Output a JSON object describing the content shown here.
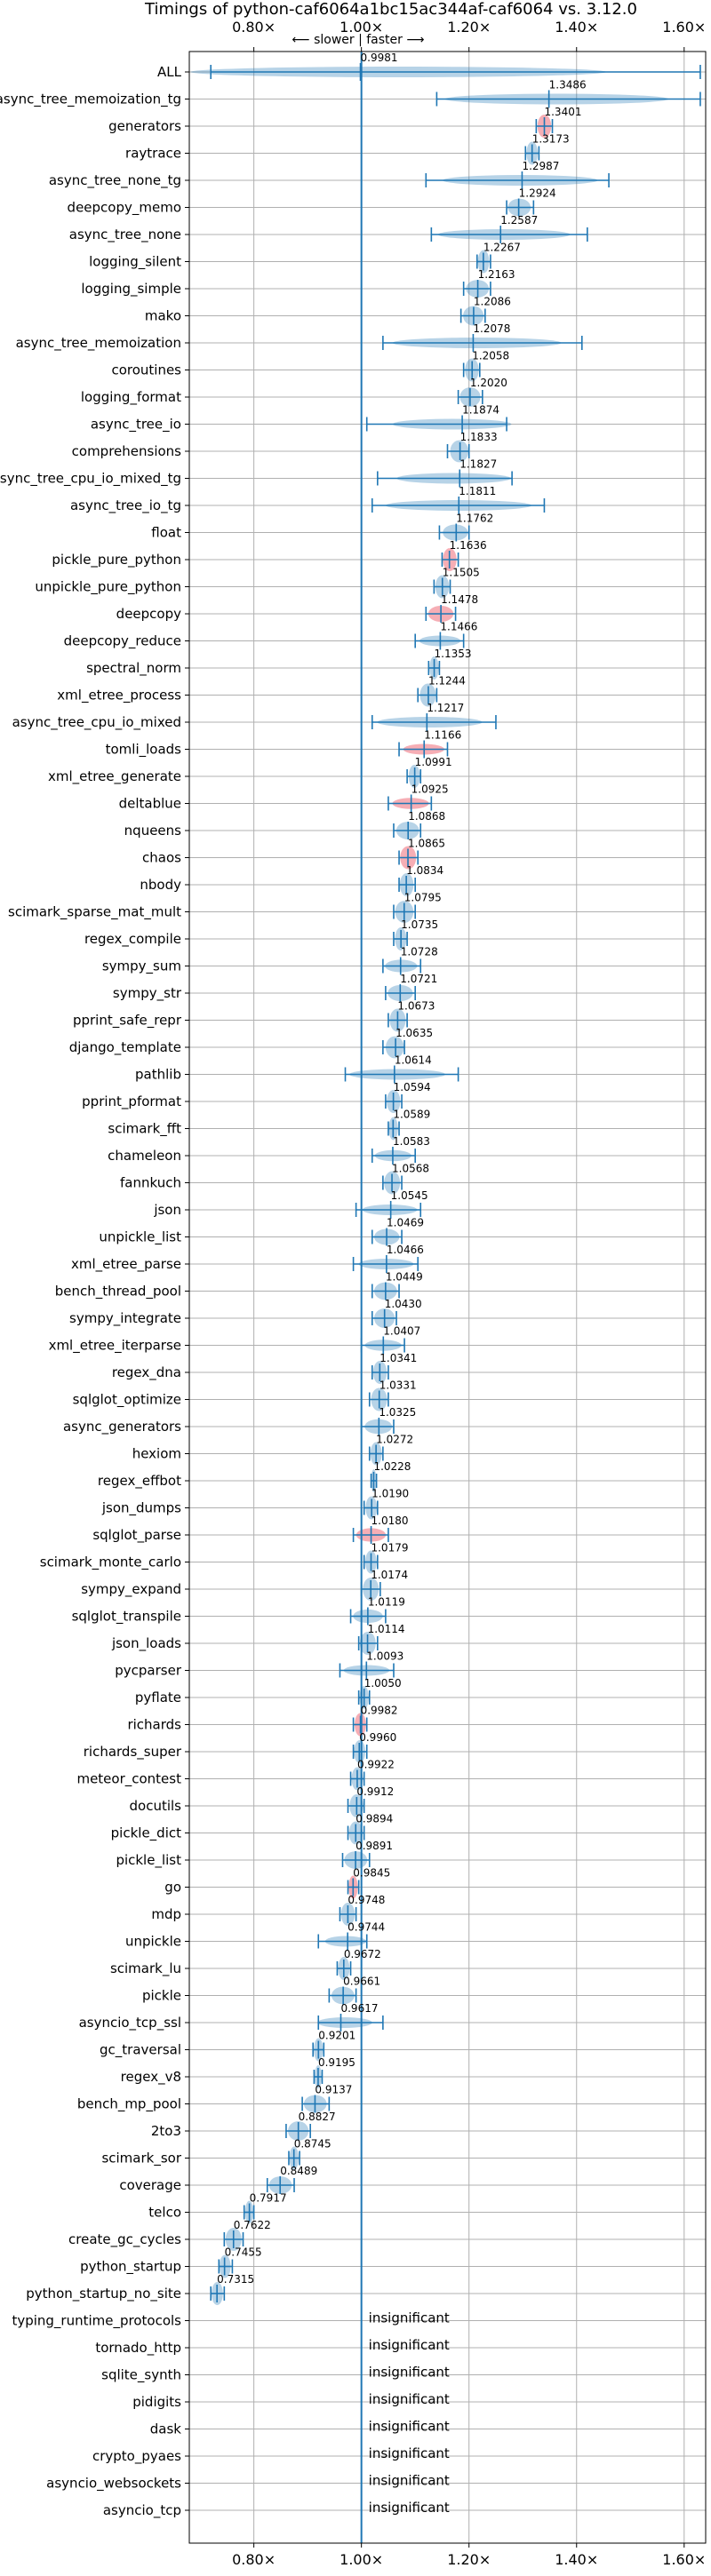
{
  "chart_data": {
    "type": "violin",
    "title": "Timings of python-caf6064a1bc15ac344af-caf6064 vs. 3.12.0",
    "xlabel": "",
    "ylabel": "",
    "xlim": [
      0.68,
      1.64
    ],
    "xticks": [
      0.8,
      1.0,
      1.2,
      1.4,
      1.6
    ],
    "xtick_labels": [
      "0.80×",
      "1.00×",
      "1.20×",
      "1.40×",
      "1.60×"
    ],
    "reference_line": 1.0,
    "direction_label": "⟵ slower | faster ⟶",
    "grid": true,
    "colors": {
      "normal": "#1f77b4",
      "highlight": "#f4a0a8",
      "line": "#1f77b4"
    },
    "benchmarks": [
      {
        "name": "ALL",
        "value": 0.9981,
        "label": "0.9981",
        "min": 0.72,
        "max": 1.63,
        "hl": false
      },
      {
        "name": "async_tree_memoization_tg",
        "value": 1.3486,
        "label": "1.3486",
        "min": 1.14,
        "max": 1.63,
        "hl": false
      },
      {
        "name": "generators",
        "value": 1.3401,
        "label": "1.3401",
        "min": 1.325,
        "max": 1.355,
        "hl": true
      },
      {
        "name": "raytrace",
        "value": 1.3173,
        "label": "1.3173",
        "min": 1.305,
        "max": 1.33,
        "hl": false
      },
      {
        "name": "async_tree_none_tg",
        "value": 1.2987,
        "label": "1.2987",
        "min": 1.12,
        "max": 1.46,
        "hl": false
      },
      {
        "name": "deepcopy_memo",
        "value": 1.2924,
        "label": "1.2924",
        "min": 1.27,
        "max": 1.32,
        "hl": false
      },
      {
        "name": "async_tree_none",
        "value": 1.2587,
        "label": "1.2587",
        "min": 1.13,
        "max": 1.42,
        "hl": false
      },
      {
        "name": "logging_silent",
        "value": 1.2267,
        "label": "1.2267",
        "min": 1.215,
        "max": 1.24,
        "hl": false
      },
      {
        "name": "logging_simple",
        "value": 1.2163,
        "label": "1.2163",
        "min": 1.19,
        "max": 1.24,
        "hl": false
      },
      {
        "name": "mako",
        "value": 1.2086,
        "label": "1.2086",
        "min": 1.185,
        "max": 1.23,
        "hl": false
      },
      {
        "name": "async_tree_memoization",
        "value": 1.2078,
        "label": "1.2078",
        "min": 1.04,
        "max": 1.41,
        "hl": false
      },
      {
        "name": "coroutines",
        "value": 1.2058,
        "label": "1.2058",
        "min": 1.19,
        "max": 1.22,
        "hl": false
      },
      {
        "name": "logging_format",
        "value": 1.202,
        "label": "1.2020",
        "min": 1.18,
        "max": 1.225,
        "hl": false
      },
      {
        "name": "async_tree_io",
        "value": 1.1874,
        "label": "1.1874",
        "min": 1.01,
        "max": 1.27,
        "hl": false
      },
      {
        "name": "comprehensions",
        "value": 1.1833,
        "label": "1.1833",
        "min": 1.16,
        "max": 1.2,
        "hl": false
      },
      {
        "name": "async_tree_cpu_io_mixed_tg",
        "value": 1.1827,
        "label": "1.1827",
        "min": 1.03,
        "max": 1.28,
        "hl": false
      },
      {
        "name": "async_tree_io_tg",
        "value": 1.1811,
        "label": "1.1811",
        "min": 1.02,
        "max": 1.34,
        "hl": false
      },
      {
        "name": "float",
        "value": 1.1762,
        "label": "1.1762",
        "min": 1.145,
        "max": 1.2,
        "hl": false
      },
      {
        "name": "pickle_pure_python",
        "value": 1.1636,
        "label": "1.1636",
        "min": 1.15,
        "max": 1.18,
        "hl": true
      },
      {
        "name": "unpickle_pure_python",
        "value": 1.1505,
        "label": "1.1505",
        "min": 1.135,
        "max": 1.165,
        "hl": false
      },
      {
        "name": "deepcopy",
        "value": 1.1478,
        "label": "1.1478",
        "min": 1.12,
        "max": 1.175,
        "hl": true
      },
      {
        "name": "deepcopy_reduce",
        "value": 1.1466,
        "label": "1.1466",
        "min": 1.1,
        "max": 1.19,
        "hl": false
      },
      {
        "name": "spectral_norm",
        "value": 1.1353,
        "label": "1.1353",
        "min": 1.125,
        "max": 1.145,
        "hl": false
      },
      {
        "name": "xml_etree_process",
        "value": 1.1244,
        "label": "1.1244",
        "min": 1.105,
        "max": 1.14,
        "hl": false
      },
      {
        "name": "async_tree_cpu_io_mixed",
        "value": 1.1217,
        "label": "1.1217",
        "min": 1.02,
        "max": 1.25,
        "hl": false
      },
      {
        "name": "tomli_loads",
        "value": 1.1166,
        "label": "1.1166",
        "min": 1.07,
        "max": 1.16,
        "hl": true
      },
      {
        "name": "xml_etree_generate",
        "value": 1.0991,
        "label": "1.0991",
        "min": 1.085,
        "max": 1.11,
        "hl": false
      },
      {
        "name": "deltablue",
        "value": 1.0925,
        "label": "1.0925",
        "min": 1.05,
        "max": 1.13,
        "hl": true
      },
      {
        "name": "nqueens",
        "value": 1.0868,
        "label": "1.0868",
        "min": 1.06,
        "max": 1.11,
        "hl": false
      },
      {
        "name": "chaos",
        "value": 1.0865,
        "label": "1.0865",
        "min": 1.07,
        "max": 1.105,
        "hl": true
      },
      {
        "name": "nbody",
        "value": 1.0834,
        "label": "1.0834",
        "min": 1.07,
        "max": 1.1,
        "hl": false
      },
      {
        "name": "scimark_sparse_mat_mult",
        "value": 1.0795,
        "label": "1.0795",
        "min": 1.06,
        "max": 1.1,
        "hl": false
      },
      {
        "name": "regex_compile",
        "value": 1.0735,
        "label": "1.0735",
        "min": 1.06,
        "max": 1.085,
        "hl": false
      },
      {
        "name": "sympy_sum",
        "value": 1.0728,
        "label": "1.0728",
        "min": 1.04,
        "max": 1.11,
        "hl": false
      },
      {
        "name": "sympy_str",
        "value": 1.0721,
        "label": "1.0721",
        "min": 1.045,
        "max": 1.1,
        "hl": false
      },
      {
        "name": "pprint_safe_repr",
        "value": 1.0673,
        "label": "1.0673",
        "min": 1.05,
        "max": 1.085,
        "hl": false
      },
      {
        "name": "django_template",
        "value": 1.0635,
        "label": "1.0635",
        "min": 1.04,
        "max": 1.08,
        "hl": false
      },
      {
        "name": "pathlib",
        "value": 1.0614,
        "label": "1.0614",
        "min": 0.97,
        "max": 1.18,
        "hl": false
      },
      {
        "name": "pprint_pformat",
        "value": 1.0594,
        "label": "1.0594",
        "min": 1.045,
        "max": 1.075,
        "hl": false
      },
      {
        "name": "scimark_fft",
        "value": 1.0589,
        "label": "1.0589",
        "min": 1.05,
        "max": 1.07,
        "hl": false
      },
      {
        "name": "chameleon",
        "value": 1.0583,
        "label": "1.0583",
        "min": 1.02,
        "max": 1.1,
        "hl": false
      },
      {
        "name": "fannkuch",
        "value": 1.0568,
        "label": "1.0568",
        "min": 1.04,
        "max": 1.075,
        "hl": false
      },
      {
        "name": "json",
        "value": 1.0545,
        "label": "1.0545",
        "min": 0.99,
        "max": 1.11,
        "hl": false
      },
      {
        "name": "unpickle_list",
        "value": 1.0469,
        "label": "1.0469",
        "min": 1.02,
        "max": 1.075,
        "hl": false
      },
      {
        "name": "xml_etree_parse",
        "value": 1.0466,
        "label": "1.0466",
        "min": 0.985,
        "max": 1.105,
        "hl": false
      },
      {
        "name": "bench_thread_pool",
        "value": 1.0449,
        "label": "1.0449",
        "min": 1.02,
        "max": 1.07,
        "hl": false
      },
      {
        "name": "sympy_integrate",
        "value": 1.043,
        "label": "1.0430",
        "min": 1.02,
        "max": 1.065,
        "hl": false
      },
      {
        "name": "xml_etree_iterparse",
        "value": 1.0407,
        "label": "1.0407",
        "min": 1.0,
        "max": 1.08,
        "hl": false
      },
      {
        "name": "regex_dna",
        "value": 1.0341,
        "label": "1.0341",
        "min": 1.02,
        "max": 1.05,
        "hl": false
      },
      {
        "name": "sqlglot_optimize",
        "value": 1.0331,
        "label": "1.0331",
        "min": 1.015,
        "max": 1.05,
        "hl": false
      },
      {
        "name": "async_generators",
        "value": 1.0325,
        "label": "1.0325",
        "min": 1.0,
        "max": 1.06,
        "hl": false
      },
      {
        "name": "hexiom",
        "value": 1.0272,
        "label": "1.0272",
        "min": 1.015,
        "max": 1.04,
        "hl": false
      },
      {
        "name": "regex_effbot",
        "value": 1.0228,
        "label": "1.0228",
        "min": 1.018,
        "max": 1.028,
        "hl": false
      },
      {
        "name": "json_dumps",
        "value": 1.019,
        "label": "1.0190",
        "min": 1.005,
        "max": 1.03,
        "hl": false
      },
      {
        "name": "sqlglot_parse",
        "value": 1.018,
        "label": "1.0180",
        "min": 0.985,
        "max": 1.05,
        "hl": true
      },
      {
        "name": "scimark_monte_carlo",
        "value": 1.0179,
        "label": "1.0179",
        "min": 1.005,
        "max": 1.03,
        "hl": false
      },
      {
        "name": "sympy_expand",
        "value": 1.0174,
        "label": "1.0174",
        "min": 1.0,
        "max": 1.035,
        "hl": false
      },
      {
        "name": "sqlglot_transpile",
        "value": 1.0119,
        "label": "1.0119",
        "min": 0.98,
        "max": 1.045,
        "hl": false
      },
      {
        "name": "json_loads",
        "value": 1.0114,
        "label": "1.0114",
        "min": 0.995,
        "max": 1.03,
        "hl": false
      },
      {
        "name": "pycparser",
        "value": 1.0093,
        "label": "1.0093",
        "min": 0.96,
        "max": 1.06,
        "hl": false
      },
      {
        "name": "pyflate",
        "value": 1.005,
        "label": "1.0050",
        "min": 0.995,
        "max": 1.015,
        "hl": false
      },
      {
        "name": "richards",
        "value": 0.9982,
        "label": "0.9982",
        "min": 0.985,
        "max": 1.01,
        "hl": true
      },
      {
        "name": "richards_super",
        "value": 0.996,
        "label": "0.9960",
        "min": 0.985,
        "max": 1.01,
        "hl": false
      },
      {
        "name": "meteor_contest",
        "value": 0.9922,
        "label": "0.9922",
        "min": 0.98,
        "max": 1.005,
        "hl": false
      },
      {
        "name": "docutils",
        "value": 0.9912,
        "label": "0.9912",
        "min": 0.975,
        "max": 1.005,
        "hl": false
      },
      {
        "name": "pickle_dict",
        "value": 0.9894,
        "label": "0.9894",
        "min": 0.975,
        "max": 1.005,
        "hl": false
      },
      {
        "name": "pickle_list",
        "value": 0.9891,
        "label": "0.9891",
        "min": 0.965,
        "max": 1.015,
        "hl": false
      },
      {
        "name": "go",
        "value": 0.9845,
        "label": "0.9845",
        "min": 0.975,
        "max": 0.995,
        "hl": true
      },
      {
        "name": "mdp",
        "value": 0.9748,
        "label": "0.9748",
        "min": 0.96,
        "max": 0.99,
        "hl": false
      },
      {
        "name": "unpickle",
        "value": 0.9744,
        "label": "0.9744",
        "min": 0.92,
        "max": 1.01,
        "hl": false
      },
      {
        "name": "scimark_lu",
        "value": 0.9672,
        "label": "0.9672",
        "min": 0.955,
        "max": 0.98,
        "hl": false
      },
      {
        "name": "pickle",
        "value": 0.9661,
        "label": "0.9661",
        "min": 0.94,
        "max": 0.99,
        "hl": false
      },
      {
        "name": "asyncio_tcp_ssl",
        "value": 0.9617,
        "label": "0.9617",
        "min": 0.92,
        "max": 1.04,
        "hl": false
      },
      {
        "name": "gc_traversal",
        "value": 0.9201,
        "label": "0.9201",
        "min": 0.91,
        "max": 0.93,
        "hl": false
      },
      {
        "name": "regex_v8",
        "value": 0.9195,
        "label": "0.9195",
        "min": 0.912,
        "max": 0.927,
        "hl": false
      },
      {
        "name": "bench_mp_pool",
        "value": 0.9137,
        "label": "0.9137",
        "min": 0.89,
        "max": 0.94,
        "hl": false
      },
      {
        "name": "2to3",
        "value": 0.8827,
        "label": "0.8827",
        "min": 0.86,
        "max": 0.905,
        "hl": false
      },
      {
        "name": "scimark_sor",
        "value": 0.8745,
        "label": "0.8745",
        "min": 0.865,
        "max": 0.885,
        "hl": false
      },
      {
        "name": "coverage",
        "value": 0.8489,
        "label": "0.8489",
        "min": 0.825,
        "max": 0.875,
        "hl": false
      },
      {
        "name": "telco",
        "value": 0.7917,
        "label": "0.7917",
        "min": 0.782,
        "max": 0.8,
        "hl": false
      },
      {
        "name": "create_gc_cycles",
        "value": 0.7622,
        "label": "0.7622",
        "min": 0.745,
        "max": 0.78,
        "hl": false
      },
      {
        "name": "python_startup",
        "value": 0.7455,
        "label": "0.7455",
        "min": 0.735,
        "max": 0.76,
        "hl": false
      },
      {
        "name": "python_startup_no_site",
        "value": 0.7315,
        "label": "0.7315",
        "min": 0.72,
        "max": 0.745,
        "hl": false
      },
      {
        "name": "typing_runtime_protocols",
        "value": null,
        "label": "insignificant"
      },
      {
        "name": "tornado_http",
        "value": null,
        "label": "insignificant"
      },
      {
        "name": "sqlite_synth",
        "value": null,
        "label": "insignificant"
      },
      {
        "name": "pidigits",
        "value": null,
        "label": "insignificant"
      },
      {
        "name": "dask",
        "value": null,
        "label": "insignificant"
      },
      {
        "name": "crypto_pyaes",
        "value": null,
        "label": "insignificant"
      },
      {
        "name": "asyncio_websockets",
        "value": null,
        "label": "insignificant"
      },
      {
        "name": "asyncio_tcp",
        "value": null,
        "label": "insignificant"
      }
    ]
  }
}
